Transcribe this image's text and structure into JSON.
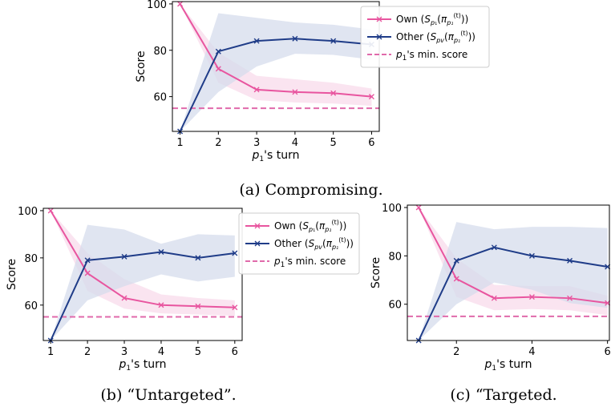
{
  "colors": {
    "own": "#e8559f",
    "other": "#1f3c88",
    "own_band": "#f7d6e8",
    "other_band": "#d5dcec",
    "min": "#e06aab"
  },
  "chart_data": [
    {
      "type": "line",
      "caption": "(a) Compromising.",
      "xlabel": "p₁'s turn",
      "ylabel": "Score",
      "x": [
        1,
        2,
        3,
        4,
        5,
        6
      ],
      "xlim": [
        0.8,
        6.2
      ],
      "ylim": [
        45,
        101
      ],
      "yticks": [
        60,
        80,
        100
      ],
      "min_score": 55,
      "legend": [
        "Own (S_{p₁}(π_{p₁}^{(t)}))",
        "Other (S_{p_v}(π_{p₁}^{(t)}))",
        "p₁'s min. score"
      ],
      "series": [
        {
          "name": "Own (S_{p₁}(π_{p₁}^{(t)}))",
          "values": [
            100,
            72,
            63,
            62,
            61.5,
            60
          ],
          "lower": [
            100,
            66,
            58.5,
            57.5,
            57,
            56
          ],
          "upper": [
            100,
            79,
            69,
            67.5,
            66,
            63.5
          ]
        },
        {
          "name": "Other (S_{p_v}(π_{p₁}^{(t)}))",
          "values": [
            45,
            79.5,
            84,
            85,
            84,
            82.5
          ],
          "lower": [
            45,
            62,
            73,
            78.5,
            78,
            76
          ],
          "upper": [
            45,
            96,
            94,
            92,
            91,
            89
          ]
        }
      ]
    },
    {
      "type": "line",
      "caption": "(b) “Untargeted”.",
      "xlabel": "p₁'s turn",
      "ylabel": "Score",
      "x": [
        1,
        2,
        3,
        4,
        5,
        6
      ],
      "xlim": [
        0.8,
        6.2
      ],
      "ylim": [
        45,
        101
      ],
      "yticks": [
        60,
        80,
        100
      ],
      "min_score": 55,
      "legend": [
        "Own (S_{p₁}(π_{p₁}^{(t)}))",
        "Other (S_{p_v}(π_{p₁}^{(t)}))",
        "p₁'s min. score"
      ],
      "series": [
        {
          "name": "Own (S_{p₁}(π_{p₁}^{(t)}))",
          "values": [
            100,
            73.5,
            63,
            60,
            59.5,
            59
          ],
          "lower": [
            100,
            66,
            58.5,
            56.5,
            56,
            55.5
          ],
          "upper": [
            100,
            82,
            71,
            64.5,
            63,
            62
          ]
        },
        {
          "name": "Other (S_{p_v}(π_{p₁}^{(t)}))",
          "values": [
            45,
            79,
            80.5,
            82.5,
            80,
            82
          ],
          "lower": [
            45,
            62,
            68,
            73,
            70,
            72
          ],
          "upper": [
            45,
            94,
            92,
            86,
            90,
            89.5
          ]
        }
      ]
    },
    {
      "type": "line",
      "caption": "(c) “Targeted.",
      "xlabel": "p₁'s turn",
      "ylabel": "Score",
      "x": [
        1,
        2,
        3,
        4,
        5,
        6
      ],
      "xlim": [
        0.7,
        6.05
      ],
      "ylim": [
        45,
        101
      ],
      "yticks": [
        60,
        80,
        100
      ],
      "xticks": [
        2,
        4,
        6
      ],
      "min_score": 55,
      "series": [
        {
          "name": "",
          "values": [
            100,
            70.5,
            62.5,
            63,
            62.5,
            60.5
          ],
          "lower": [
            100,
            63,
            57.5,
            58,
            57.5,
            55.5
          ],
          "upper": [
            100,
            79,
            68,
            67.5,
            67.5,
            63.5
          ]
        },
        {
          "name": "",
          "values": [
            45,
            78,
            83.5,
            80,
            78,
            75.5
          ],
          "lower": [
            45,
            60,
            69,
            66,
            60.5,
            58.5
          ],
          "upper": [
            45,
            94,
            91,
            92,
            92,
            91.5
          ]
        }
      ]
    }
  ]
}
